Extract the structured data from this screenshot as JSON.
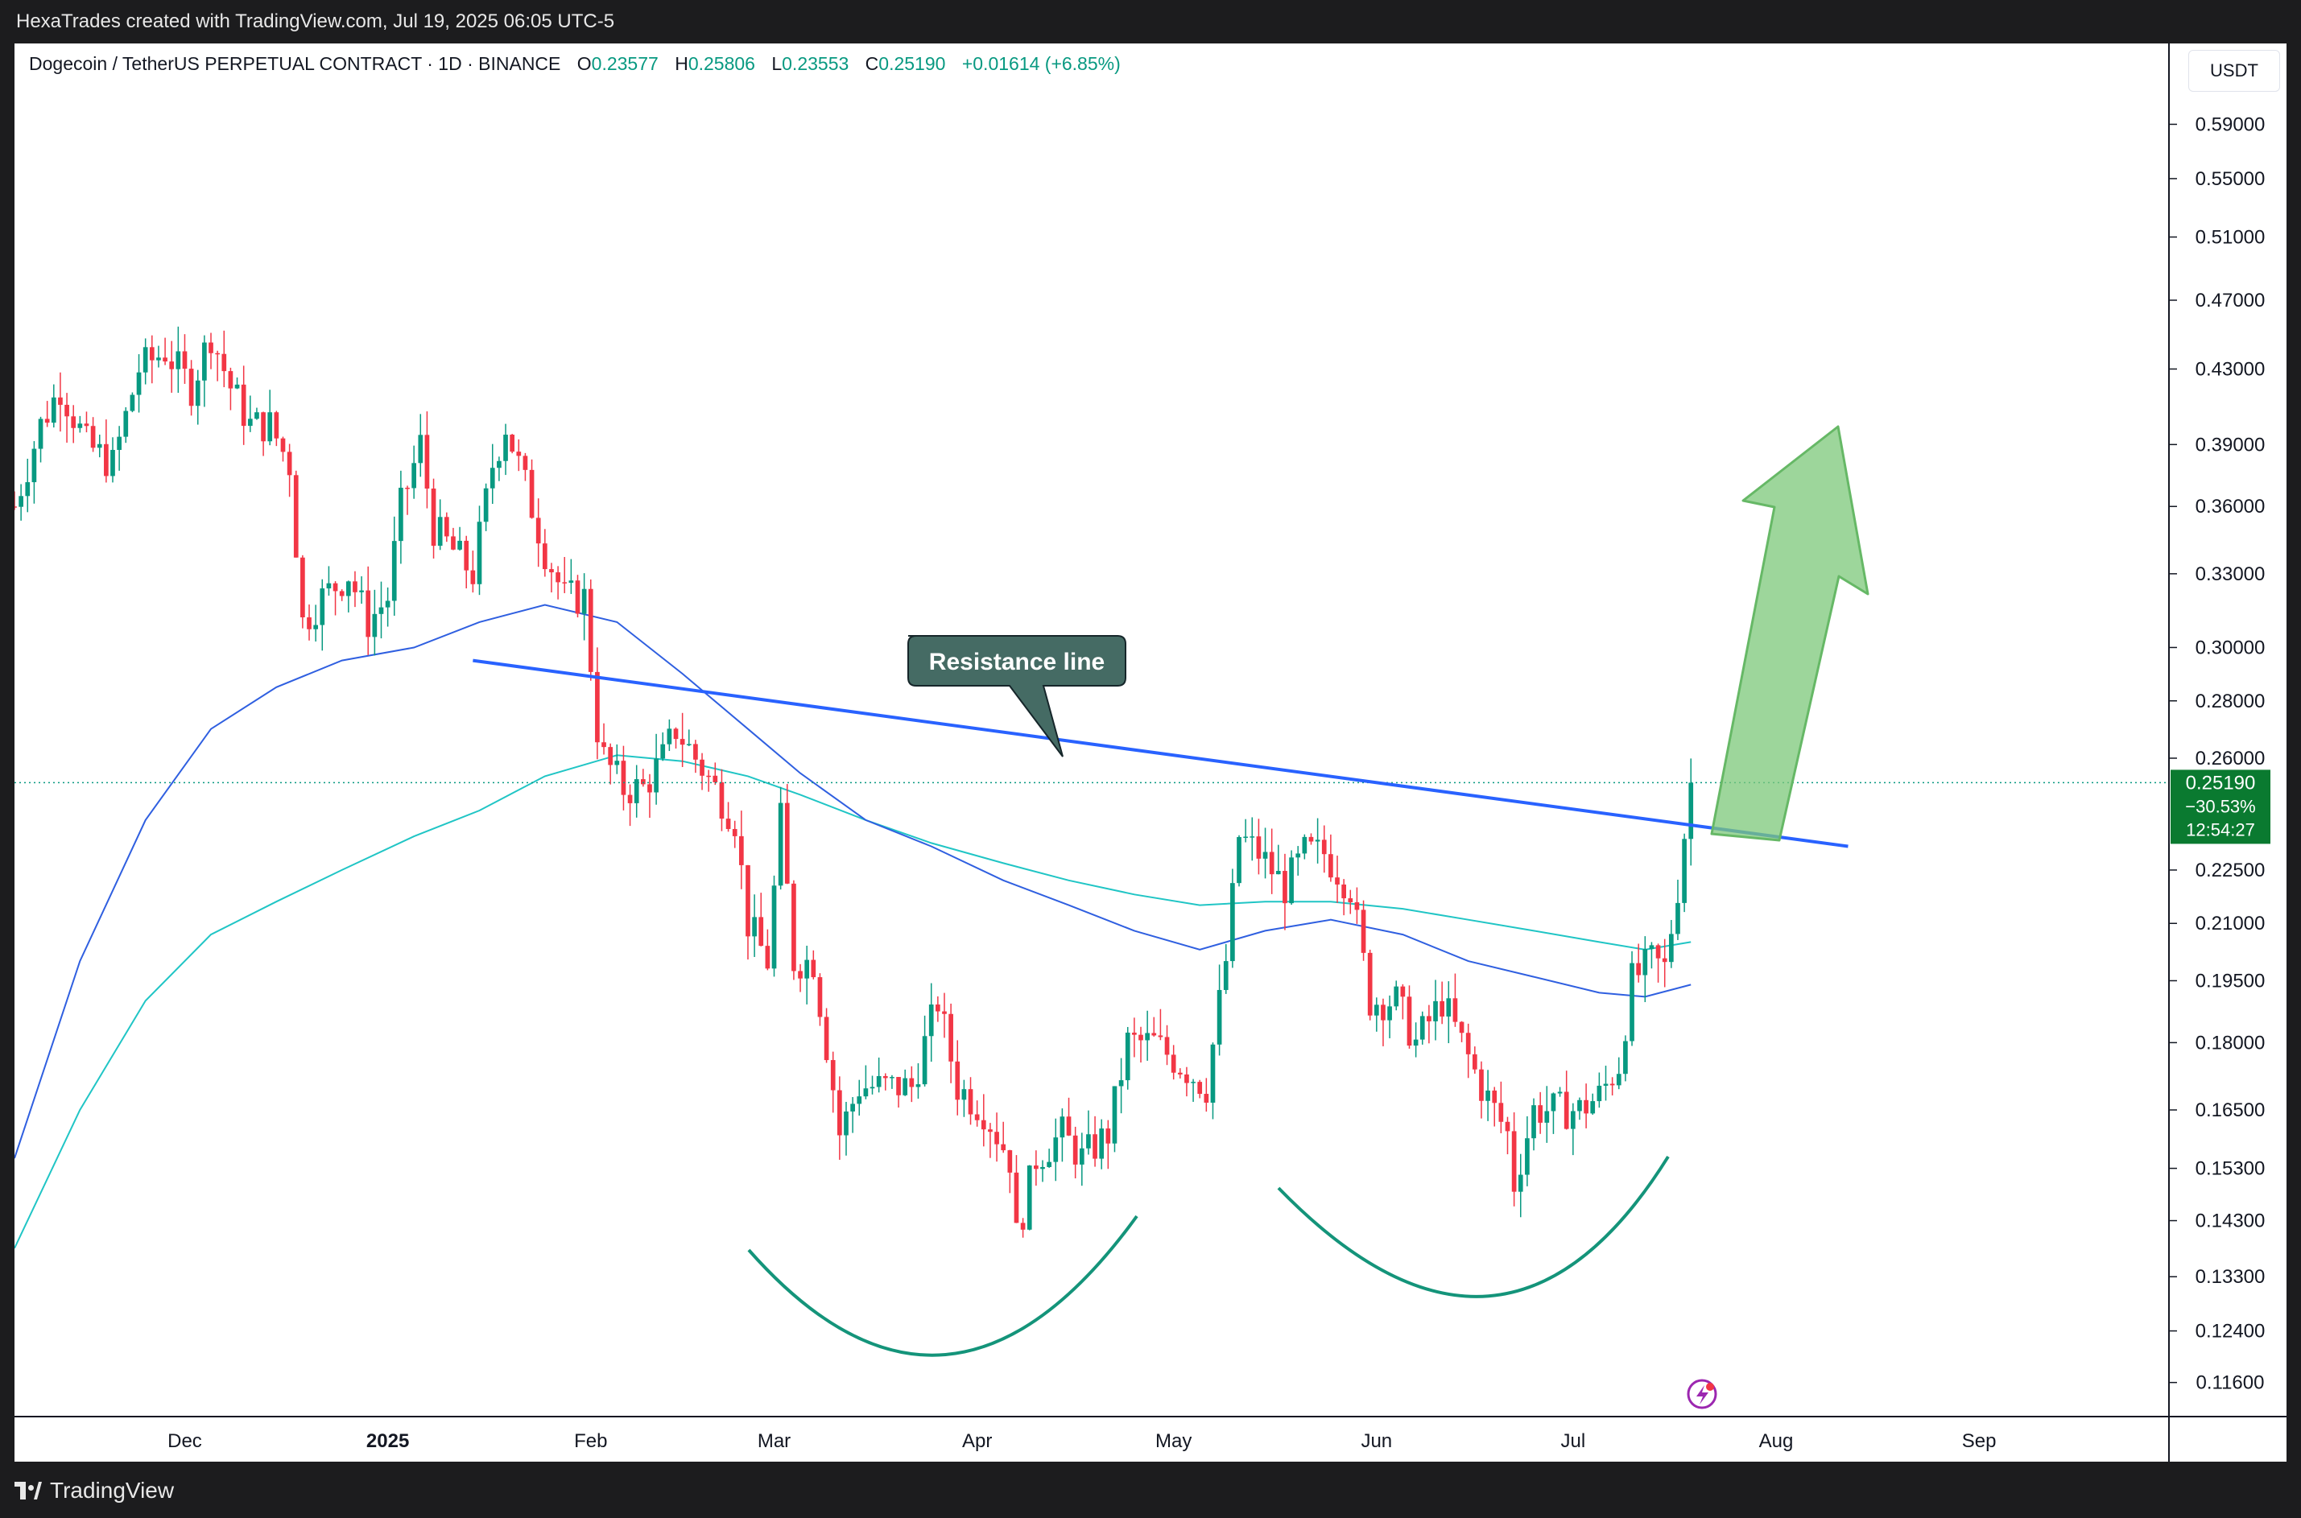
{
  "header": {
    "attribution": "HexaTrades created with TradingView.com, Jul 19, 2025 06:05 UTC-5"
  },
  "footer": {
    "brand": "TradingView"
  },
  "chart_data": {
    "type": "candlestick",
    "symbol_line": "Dogecoin / TetherUS PERPETUAL CONTRACT · 1D · BINANCE",
    "ohlc": {
      "o_label": "O",
      "open": "0.23577",
      "h_label": "H",
      "high": "0.25806",
      "l_label": "L",
      "low": "0.23553",
      "c_label": "C",
      "close": "0.25190",
      "change": "+0.01614 (+6.85%)"
    },
    "currency": "USDT",
    "scale": "log",
    "y_ticks": [
      "0.59000",
      "0.55000",
      "0.51000",
      "0.47000",
      "0.43000",
      "0.39000",
      "0.36000",
      "0.33000",
      "0.30000",
      "0.28000",
      "0.26000",
      "0.22500",
      "0.21000",
      "0.19500",
      "0.18000",
      "0.16500",
      "0.15300",
      "0.14300",
      "0.13300",
      "0.12400",
      "0.11600"
    ],
    "x_ticks": [
      {
        "label": "Dec",
        "date": "2024-12-01",
        "bold": false
      },
      {
        "label": "2025",
        "date": "2025-01-01",
        "bold": true
      },
      {
        "label": "Feb",
        "date": "2025-02-01",
        "bold": false
      },
      {
        "label": "Mar",
        "date": "2025-03-01",
        "bold": false
      },
      {
        "label": "Apr",
        "date": "2025-04-01",
        "bold": false
      },
      {
        "label": "May",
        "date": "2025-05-01",
        "bold": false
      },
      {
        "label": "Jun",
        "date": "2025-06-01",
        "bold": false
      },
      {
        "label": "Jul",
        "date": "2025-07-01",
        "bold": false
      },
      {
        "label": "Aug",
        "date": "2025-08-01",
        "bold": false
      },
      {
        "label": "Sep",
        "date": "2025-09-01",
        "bold": false
      }
    ],
    "x_range": [
      "2024-11-05",
      "2025-09-30"
    ],
    "y_range": [
      0.111,
      0.655
    ],
    "last_price": {
      "price": "0.25190",
      "change_pct": "−30.53%",
      "countdown": "12:54:27",
      "value": 0.2519
    },
    "price_path": [
      [
        "2024-11-05",
        0.36
      ],
      [
        "2024-11-09",
        0.4
      ],
      [
        "2024-11-12",
        0.42
      ],
      [
        "2024-11-16",
        0.39
      ],
      [
        "2024-11-20",
        0.38
      ],
      [
        "2024-11-24",
        0.43
      ],
      [
        "2024-11-28",
        0.44
      ],
      [
        "2024-12-02",
        0.42
      ],
      [
        "2024-12-05",
        0.45
      ],
      [
        "2024-12-08",
        0.42
      ],
      [
        "2024-12-11",
        0.4
      ],
      [
        "2024-12-14",
        0.4
      ],
      [
        "2024-12-17",
        0.38
      ],
      [
        "2024-12-19",
        0.31
      ],
      [
        "2024-12-22",
        0.32
      ],
      [
        "2024-12-26",
        0.33
      ],
      [
        "2024-12-29",
        0.31
      ],
      [
        "2025-01-01",
        0.32
      ],
      [
        "2025-01-03",
        0.36
      ],
      [
        "2025-01-06",
        0.39
      ],
      [
        "2025-01-08",
        0.35
      ],
      [
        "2025-01-11",
        0.34
      ],
      [
        "2025-01-14",
        0.33
      ],
      [
        "2025-01-17",
        0.38
      ],
      [
        "2025-01-19",
        0.4
      ],
      [
        "2025-01-22",
        0.37
      ],
      [
        "2025-01-25",
        0.34
      ],
      [
        "2025-01-28",
        0.32
      ],
      [
        "2025-01-31",
        0.32
      ],
      [
        "2025-02-02",
        0.27
      ],
      [
        "2025-02-03",
        0.26
      ],
      [
        "2025-02-06",
        0.25
      ],
      [
        "2025-02-09",
        0.25
      ],
      [
        "2025-02-12",
        0.26
      ],
      [
        "2025-02-14",
        0.27
      ],
      [
        "2025-02-17",
        0.26
      ],
      [
        "2025-02-20",
        0.25
      ],
      [
        "2025-02-23",
        0.24
      ],
      [
        "2025-02-25",
        0.21
      ],
      [
        "2025-02-28",
        0.2
      ],
      [
        "2025-03-02",
        0.24
      ],
      [
        "2025-03-04",
        0.2
      ],
      [
        "2025-03-07",
        0.2
      ],
      [
        "2025-03-10",
        0.17
      ],
      [
        "2025-03-11",
        0.16
      ],
      [
        "2025-03-14",
        0.17
      ],
      [
        "2025-03-18",
        0.17
      ],
      [
        "2025-03-22",
        0.17
      ],
      [
        "2025-03-26",
        0.19
      ],
      [
        "2025-03-29",
        0.17
      ],
      [
        "2025-04-02",
        0.165
      ],
      [
        "2025-04-06",
        0.155
      ],
      [
        "2025-04-07",
        0.14
      ],
      [
        "2025-04-10",
        0.155
      ],
      [
        "2025-04-14",
        0.16
      ],
      [
        "2025-04-17",
        0.155
      ],
      [
        "2025-04-21",
        0.16
      ],
      [
        "2025-04-24",
        0.18
      ],
      [
        "2025-04-28",
        0.18
      ],
      [
        "2025-05-02",
        0.175
      ],
      [
        "2025-05-06",
        0.17
      ],
      [
        "2025-05-09",
        0.2
      ],
      [
        "2025-05-11",
        0.235
      ],
      [
        "2025-05-14",
        0.23
      ],
      [
        "2025-05-18",
        0.22
      ],
      [
        "2025-05-21",
        0.23
      ],
      [
        "2025-05-24",
        0.23
      ],
      [
        "2025-05-28",
        0.22
      ],
      [
        "2025-05-31",
        0.19
      ],
      [
        "2025-06-04",
        0.19
      ],
      [
        "2025-06-07",
        0.18
      ],
      [
        "2025-06-11",
        0.19
      ],
      [
        "2025-06-14",
        0.18
      ],
      [
        "2025-06-17",
        0.17
      ],
      [
        "2025-06-21",
        0.16
      ],
      [
        "2025-06-22",
        0.15
      ],
      [
        "2025-06-25",
        0.165
      ],
      [
        "2025-06-29",
        0.165
      ],
      [
        "2025-07-02",
        0.165
      ],
      [
        "2025-07-05",
        0.168
      ],
      [
        "2025-07-08",
        0.175
      ],
      [
        "2025-07-10",
        0.195
      ],
      [
        "2025-07-13",
        0.2
      ],
      [
        "2025-07-15",
        0.198
      ],
      [
        "2025-07-17",
        0.22
      ],
      [
        "2025-07-18",
        0.236
      ],
      [
        "2025-07-19",
        0.2519
      ]
    ],
    "ma_blue": [
      [
        "2024-11-05",
        0.155
      ],
      [
        "2024-11-15",
        0.2
      ],
      [
        "2024-11-25",
        0.24
      ],
      [
        "2024-12-05",
        0.27
      ],
      [
        "2024-12-15",
        0.285
      ],
      [
        "2024-12-25",
        0.295
      ],
      [
        "2025-01-05",
        0.3
      ],
      [
        "2025-01-15",
        0.31
      ],
      [
        "2025-01-25",
        0.317
      ],
      [
        "2025-02-05",
        0.31
      ],
      [
        "2025-02-15",
        0.29
      ],
      [
        "2025-02-25",
        0.27
      ],
      [
        "2025-03-05",
        0.255
      ],
      [
        "2025-03-15",
        0.24
      ],
      [
        "2025-03-25",
        0.232
      ],
      [
        "2025-04-05",
        0.222
      ],
      [
        "2025-04-15",
        0.215
      ],
      [
        "2025-04-25",
        0.208
      ],
      [
        "2025-05-05",
        0.203
      ],
      [
        "2025-05-15",
        0.208
      ],
      [
        "2025-05-25",
        0.211
      ],
      [
        "2025-06-05",
        0.207
      ],
      [
        "2025-06-15",
        0.2
      ],
      [
        "2025-06-25",
        0.196
      ],
      [
        "2025-07-05",
        0.192
      ],
      [
        "2025-07-12",
        0.191
      ],
      [
        "2025-07-19",
        0.194
      ]
    ],
    "ma_cyan": [
      [
        "2024-11-05",
        0.138
      ],
      [
        "2024-11-15",
        0.165
      ],
      [
        "2024-11-25",
        0.19
      ],
      [
        "2024-12-05",
        0.207
      ],
      [
        "2024-12-15",
        0.216
      ],
      [
        "2024-12-25",
        0.225
      ],
      [
        "2025-01-05",
        0.235
      ],
      [
        "2025-01-15",
        0.243
      ],
      [
        "2025-01-25",
        0.254
      ],
      [
        "2025-02-05",
        0.261
      ],
      [
        "2025-02-15",
        0.259
      ],
      [
        "2025-02-25",
        0.254
      ],
      [
        "2025-03-05",
        0.248
      ],
      [
        "2025-03-15",
        0.24
      ],
      [
        "2025-03-25",
        0.233
      ],
      [
        "2025-04-05",
        0.227
      ],
      [
        "2025-04-15",
        0.222
      ],
      [
        "2025-04-25",
        0.218
      ],
      [
        "2025-05-05",
        0.215
      ],
      [
        "2025-05-15",
        0.216
      ],
      [
        "2025-05-25",
        0.216
      ],
      [
        "2025-06-05",
        0.214
      ],
      [
        "2025-06-15",
        0.211
      ],
      [
        "2025-06-25",
        0.208
      ],
      [
        "2025-07-05",
        0.205
      ],
      [
        "2025-07-12",
        0.203
      ],
      [
        "2025-07-19",
        0.205
      ]
    ]
  },
  "annotations": {
    "resistance_label": "Resistance line",
    "resistance_line": [
      [
        "2025-01-14",
        0.295
      ],
      [
        "2025-08-12",
        0.232
      ]
    ]
  }
}
